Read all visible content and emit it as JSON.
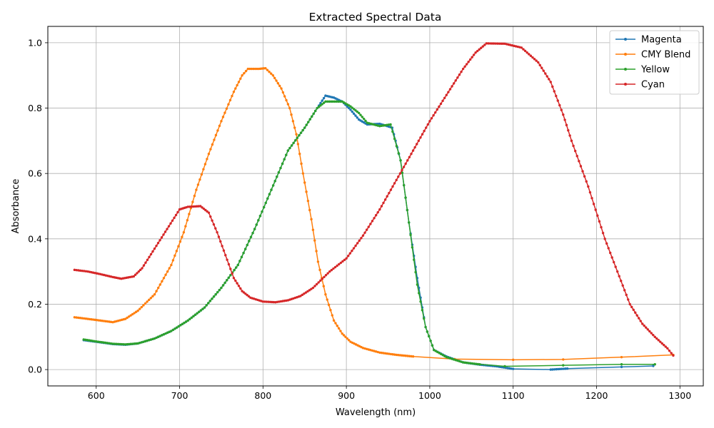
{
  "chart_data": {
    "type": "line",
    "title": "Extracted Spectral Data",
    "xlabel": "Wavelength (nm)",
    "ylabel": "Absorbance",
    "xlim": [
      542,
      1328
    ],
    "ylim": [
      -0.05,
      1.05
    ],
    "xticks": [
      600,
      700,
      800,
      900,
      1000,
      1100,
      1200,
      1300
    ],
    "yticks": [
      0.0,
      0.2,
      0.4,
      0.6,
      0.8,
      1.0
    ],
    "grid": true,
    "legend_position": "top-right",
    "series": [
      {
        "name": "Magenta",
        "color": "#1f77b4",
        "points": [
          [
            585,
            0.09
          ],
          [
            600,
            0.085
          ],
          [
            620,
            0.078
          ],
          [
            635,
            0.076
          ],
          [
            650,
            0.08
          ],
          [
            670,
            0.095
          ],
          [
            690,
            0.118
          ],
          [
            710,
            0.15
          ],
          [
            730,
            0.19
          ],
          [
            750,
            0.25
          ],
          [
            770,
            0.32
          ],
          [
            790,
            0.43
          ],
          [
            810,
            0.55
          ],
          [
            830,
            0.67
          ],
          [
            850,
            0.74
          ],
          [
            865,
            0.8
          ],
          [
            875,
            0.838
          ],
          [
            885,
            0.832
          ],
          [
            895,
            0.82
          ],
          [
            905,
            0.795
          ],
          [
            915,
            0.765
          ],
          [
            925,
            0.75
          ],
          [
            940,
            0.752
          ],
          [
            955,
            0.74
          ],
          [
            965,
            0.64
          ],
          [
            975,
            0.45
          ],
          [
            985,
            0.28
          ],
          [
            995,
            0.13
          ],
          [
            1005,
            0.06
          ],
          [
            1020,
            0.04
          ],
          [
            1040,
            0.022
          ],
          [
            1060,
            0.015
          ],
          [
            1080,
            0.01
          ],
          [
            1100,
            0.002
          ],
          [
            1145,
            0.0
          ],
          [
            1165,
            0.003
          ],
          [
            1230,
            0.008
          ],
          [
            1268,
            0.011
          ]
        ]
      },
      {
        "name": "CMY Blend",
        "color": "#ff7f0e",
        "points": [
          [
            574,
            0.16
          ],
          [
            590,
            0.155
          ],
          [
            605,
            0.15
          ],
          [
            620,
            0.145
          ],
          [
            635,
            0.155
          ],
          [
            650,
            0.18
          ],
          [
            670,
            0.23
          ],
          [
            690,
            0.32
          ],
          [
            705,
            0.42
          ],
          [
            720,
            0.55
          ],
          [
            735,
            0.66
          ],
          [
            750,
            0.76
          ],
          [
            765,
            0.85
          ],
          [
            775,
            0.9
          ],
          [
            782,
            0.92
          ],
          [
            795,
            0.92
          ],
          [
            803,
            0.922
          ],
          [
            812,
            0.9
          ],
          [
            822,
            0.86
          ],
          [
            832,
            0.8
          ],
          [
            840,
            0.72
          ],
          [
            848,
            0.6
          ],
          [
            858,
            0.46
          ],
          [
            866,
            0.33
          ],
          [
            875,
            0.23
          ],
          [
            885,
            0.15
          ],
          [
            895,
            0.11
          ],
          [
            905,
            0.085
          ],
          [
            920,
            0.066
          ],
          [
            940,
            0.052
          ],
          [
            960,
            0.045
          ],
          [
            980,
            0.04
          ],
          [
            1030,
            0.032
          ],
          [
            1100,
            0.03
          ],
          [
            1160,
            0.031
          ],
          [
            1230,
            0.038
          ],
          [
            1292,
            0.045
          ]
        ]
      },
      {
        "name": "Yellow",
        "color": "#2ca02c",
        "points": [
          [
            585,
            0.092
          ],
          [
            600,
            0.086
          ],
          [
            620,
            0.079
          ],
          [
            635,
            0.077
          ],
          [
            650,
            0.08
          ],
          [
            670,
            0.095
          ],
          [
            690,
            0.118
          ],
          [
            710,
            0.15
          ],
          [
            730,
            0.19
          ],
          [
            750,
            0.25
          ],
          [
            770,
            0.32
          ],
          [
            790,
            0.43
          ],
          [
            810,
            0.55
          ],
          [
            830,
            0.67
          ],
          [
            850,
            0.74
          ],
          [
            865,
            0.8
          ],
          [
            875,
            0.82
          ],
          [
            895,
            0.82
          ],
          [
            905,
            0.805
          ],
          [
            915,
            0.785
          ],
          [
            925,
            0.755
          ],
          [
            940,
            0.745
          ],
          [
            953,
            0.75
          ],
          [
            965,
            0.64
          ],
          [
            975,
            0.45
          ],
          [
            985,
            0.26
          ],
          [
            995,
            0.13
          ],
          [
            1005,
            0.06
          ],
          [
            1020,
            0.038
          ],
          [
            1040,
            0.022
          ],
          [
            1060,
            0.016
          ],
          [
            1090,
            0.01
          ],
          [
            1160,
            0.013
          ],
          [
            1230,
            0.016
          ],
          [
            1270,
            0.016
          ]
        ]
      },
      {
        "name": "Cyan",
        "color": "#d62728",
        "points": [
          [
            574,
            0.305
          ],
          [
            590,
            0.3
          ],
          [
            605,
            0.292
          ],
          [
            620,
            0.283
          ],
          [
            630,
            0.278
          ],
          [
            645,
            0.285
          ],
          [
            655,
            0.31
          ],
          [
            670,
            0.37
          ],
          [
            685,
            0.43
          ],
          [
            700,
            0.49
          ],
          [
            710,
            0.498
          ],
          [
            725,
            0.5
          ],
          [
            735,
            0.48
          ],
          [
            745,
            0.42
          ],
          [
            755,
            0.35
          ],
          [
            765,
            0.28
          ],
          [
            775,
            0.24
          ],
          [
            785,
            0.22
          ],
          [
            800,
            0.208
          ],
          [
            815,
            0.206
          ],
          [
            830,
            0.212
          ],
          [
            845,
            0.225
          ],
          [
            860,
            0.25
          ],
          [
            880,
            0.3
          ],
          [
            900,
            0.34
          ],
          [
            920,
            0.41
          ],
          [
            940,
            0.49
          ],
          [
            960,
            0.58
          ],
          [
            980,
            0.67
          ],
          [
            1000,
            0.76
          ],
          [
            1020,
            0.84
          ],
          [
            1040,
            0.92
          ],
          [
            1055,
            0.97
          ],
          [
            1068,
            0.998
          ],
          [
            1090,
            0.997
          ],
          [
            1110,
            0.985
          ],
          [
            1130,
            0.94
          ],
          [
            1145,
            0.88
          ],
          [
            1160,
            0.78
          ],
          [
            1170,
            0.7
          ],
          [
            1190,
            0.56
          ],
          [
            1210,
            0.4
          ],
          [
            1225,
            0.3
          ],
          [
            1240,
            0.2
          ],
          [
            1255,
            0.14
          ],
          [
            1270,
            0.1
          ],
          [
            1285,
            0.065
          ],
          [
            1292,
            0.043
          ]
        ]
      }
    ]
  }
}
